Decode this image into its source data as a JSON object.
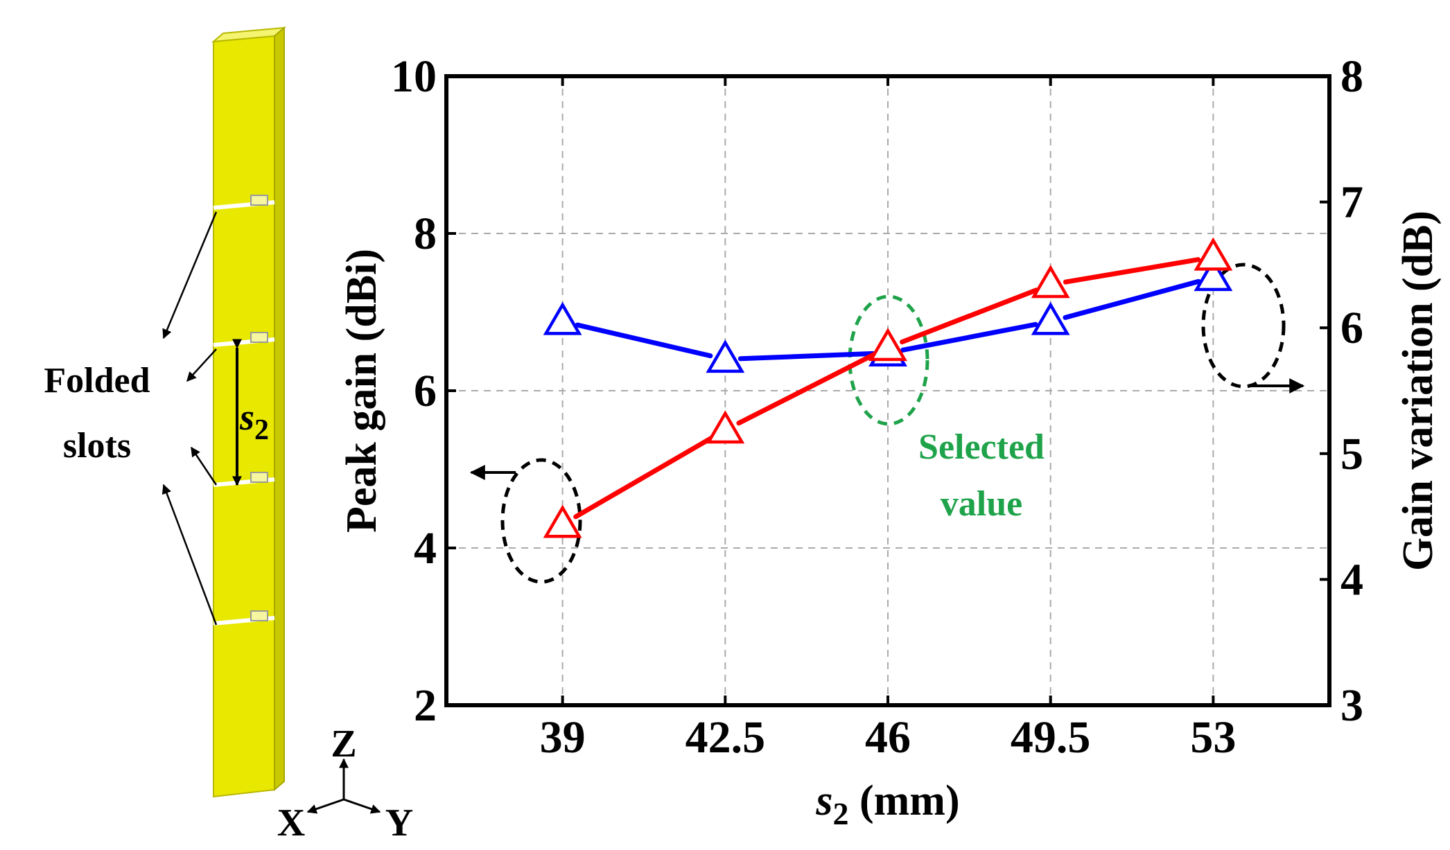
{
  "colors": {
    "peak_gain": "#ff0000",
    "gain_variation": "#0000ff",
    "selected": "#1fa34a",
    "antenna": "#e8e800",
    "grid": "#aaaaaa"
  },
  "figure": {
    "annotation_folded": "Folded",
    "annotation_slots": "slots",
    "spacing_symbol": "s",
    "spacing_subscript": "2",
    "axis_z": "Z",
    "axis_x": "X",
    "axis_y": "Y",
    "selected_line1": "Selected",
    "selected_line2": "value"
  },
  "chart_data": {
    "type": "line",
    "title": "",
    "xlabel_symbol": "s",
    "xlabel_subscript": "2",
    "xlabel_unit": " (mm)",
    "ylabel_left": "Peak gain (dBi)",
    "ylabel_right": "Gain variation (dB)",
    "x": [
      39,
      42.5,
      46,
      49.5,
      53
    ],
    "x_tick_labels": [
      "39",
      "42.5",
      "46",
      "49.5",
      "53"
    ],
    "ylim_left": [
      2,
      10
    ],
    "y_ticks_left": [
      "2",
      "4",
      "6",
      "8",
      "10"
    ],
    "ylim_right": [
      3,
      8
    ],
    "y_ticks_right": [
      "3",
      "4",
      "5",
      "6",
      "7",
      "8"
    ],
    "grid": true,
    "selected_x": 46,
    "series": [
      {
        "name": "Peak gain",
        "axis": "left",
        "color": "#ff0000",
        "marker": "triangle",
        "values": [
          4.3,
          5.5,
          6.55,
          7.35,
          7.7
        ]
      },
      {
        "name": "Gain variation",
        "axis": "right",
        "color": "#0000ff",
        "marker": "triangle",
        "values": [
          6.05,
          5.75,
          5.8,
          6.05,
          6.4
        ]
      }
    ]
  }
}
